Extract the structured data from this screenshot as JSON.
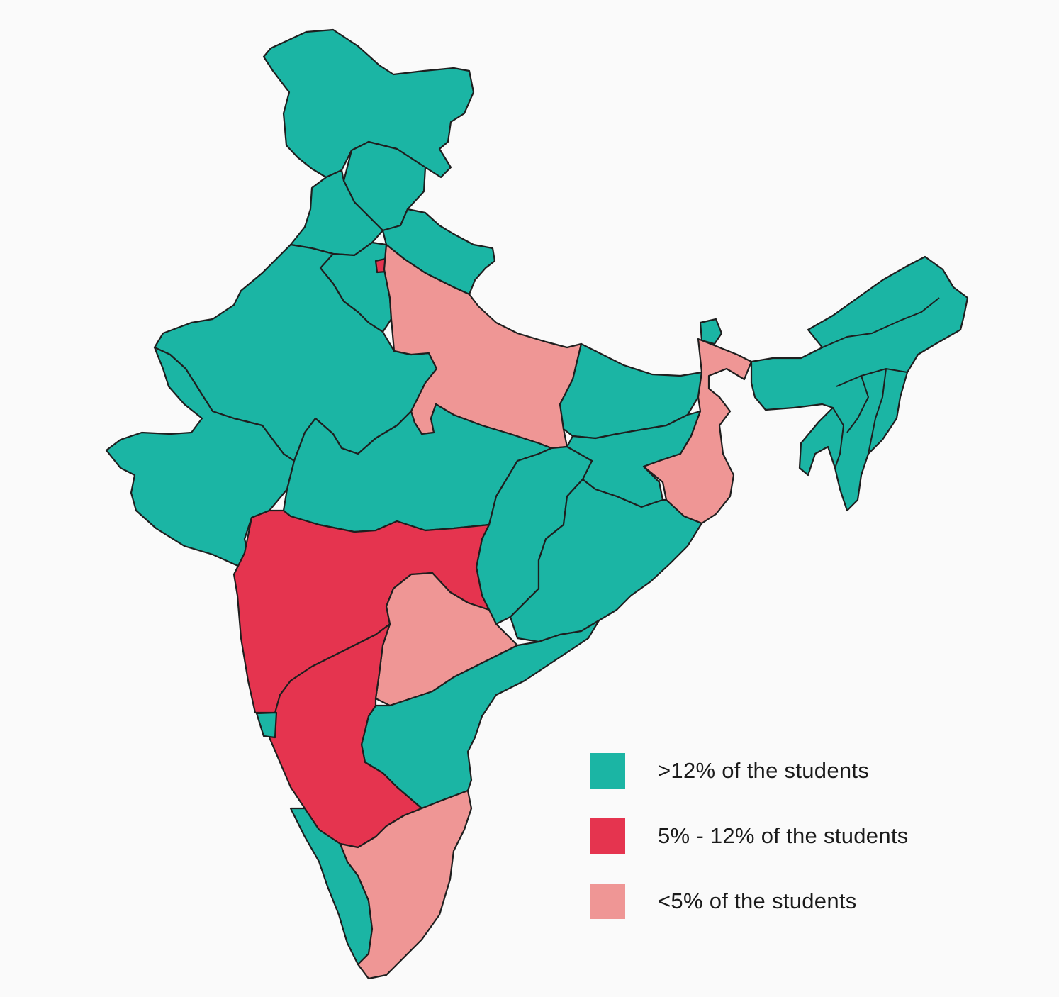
{
  "map": {
    "colors": {
      "high": "#1bb5a4",
      "mid": "#e5344f",
      "low": "#ef9695",
      "border": "#1e1e1e"
    },
    "legend": [
      {
        "category": "high",
        "label": ">12% of the students"
      },
      {
        "category": "mid",
        "label": "5% - 12% of the students"
      },
      {
        "category": "low",
        "label": "<5% of the students"
      }
    ],
    "regions": [
      {
        "name": "jammu-kashmir",
        "category": "high"
      },
      {
        "name": "himachal-pradesh",
        "category": "high"
      },
      {
        "name": "punjab",
        "category": "high"
      },
      {
        "name": "uttarakhand",
        "category": "high"
      },
      {
        "name": "haryana",
        "category": "high"
      },
      {
        "name": "delhi",
        "category": "mid"
      },
      {
        "name": "rajasthan",
        "category": "high"
      },
      {
        "name": "uttar-pradesh",
        "category": "low"
      },
      {
        "name": "gujarat",
        "category": "high"
      },
      {
        "name": "madhya-pradesh",
        "category": "high"
      },
      {
        "name": "bihar",
        "category": "high"
      },
      {
        "name": "jharkhand",
        "category": "high"
      },
      {
        "name": "west-bengal",
        "category": "low"
      },
      {
        "name": "sikkim",
        "category": "high"
      },
      {
        "name": "chhattisgarh",
        "category": "high"
      },
      {
        "name": "odisha",
        "category": "high"
      },
      {
        "name": "maharashtra",
        "category": "mid"
      },
      {
        "name": "telangana",
        "category": "low"
      },
      {
        "name": "andhra-pradesh",
        "category": "high"
      },
      {
        "name": "karnataka",
        "category": "mid"
      },
      {
        "name": "goa",
        "category": "high"
      },
      {
        "name": "kerala",
        "category": "high"
      },
      {
        "name": "tamil-nadu",
        "category": "low"
      },
      {
        "name": "northeast",
        "category": "high"
      }
    ]
  }
}
